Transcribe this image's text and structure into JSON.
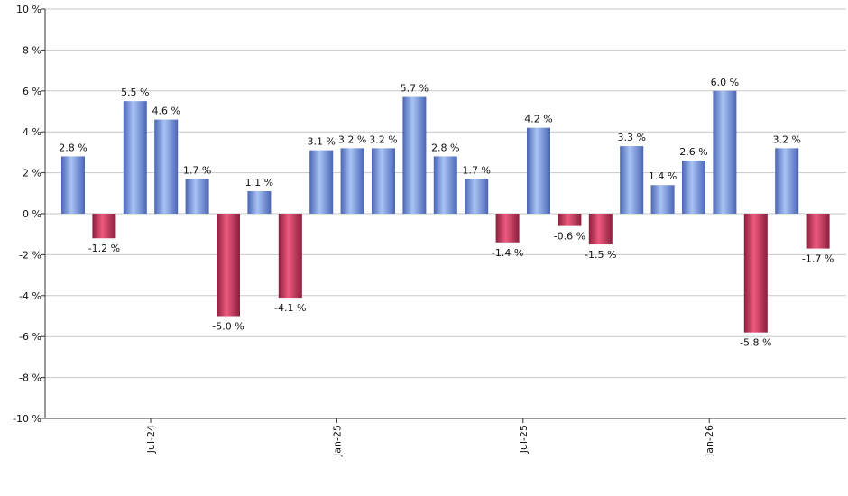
{
  "chart_data": {
    "type": "bar",
    "title": "",
    "xlabel": "",
    "ylabel": "",
    "ylim": [
      -10,
      10
    ],
    "yticks": [
      10,
      8,
      6,
      4,
      2,
      0,
      -2,
      -4,
      -6,
      -8,
      -10
    ],
    "ytick_labels": [
      "10 %",
      "8 %",
      "6 %",
      "4 %",
      "2 %",
      "0 %",
      "-2 %",
      "-4 %",
      "-6 %",
      "-8 %",
      "-10 %"
    ],
    "grid": true,
    "legend": "none",
    "values": [
      2.8,
      -1.2,
      5.5,
      4.6,
      1.7,
      -5.0,
      1.1,
      -4.1,
      3.1,
      3.2,
      3.2,
      5.7,
      2.8,
      1.7,
      -1.4,
      4.2,
      -0.6,
      -1.5,
      3.3,
      1.4,
      2.6,
      6.0,
      -5.8,
      3.2,
      -1.7
    ],
    "value_labels": [
      "2.8 %",
      "-1.2 %",
      "5.5 %",
      "4.6 %",
      "1.7 %",
      "-5.0 %",
      "1.1 %",
      "-4.1 %",
      "3.1 %",
      "3.2 %",
      "3.2 %",
      "5.7 %",
      "2.8 %",
      "1.7 %",
      "-1.4 %",
      "4.2 %",
      "-0.6 %",
      "-1.5 %",
      "3.3 %",
      "1.4 %",
      "2.6 %",
      "6.0 %",
      "-5.8 %",
      "3.2 %",
      "-1.7 %"
    ],
    "xtick_labels": [
      {
        "index": 2.5,
        "label": "Jul-24"
      },
      {
        "index": 8.5,
        "label": "Jan-25"
      },
      {
        "index": 14.5,
        "label": "Jul-25"
      },
      {
        "index": 20.5,
        "label": "Jan-26"
      }
    ],
    "colors": {
      "positive_dark": "#4a66b4",
      "positive_light": "#a9c3f5",
      "negative_dark": "#8a1e3c",
      "negative_light": "#ee5a7e",
      "grid": "#c8c8c8",
      "axis": "#333333"
    }
  }
}
